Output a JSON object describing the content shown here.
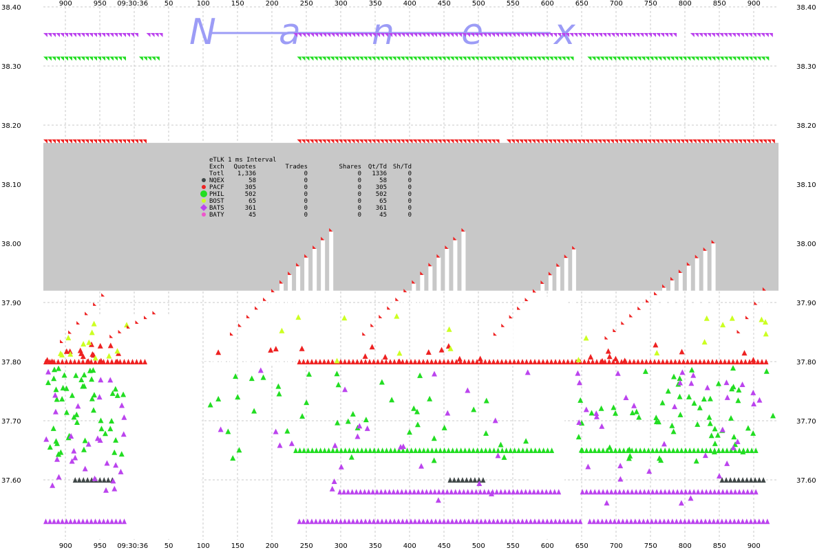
{
  "chart_data": {
    "type": "scatter",
    "y_range": [
      37.5,
      38.4
    ],
    "y_ticks": [
      "38.40",
      "38.30",
      "38.20",
      "38.10",
      "38.00",
      "37.90",
      "37.80",
      "37.70",
      "37.60"
    ],
    "x_tick_labels": [
      "900",
      "950",
      "09:30:36",
      "50",
      "100",
      "150",
      "200",
      "250",
      "300",
      "350",
      "400",
      "450",
      "500",
      "550",
      "600",
      "650",
      "700",
      "750",
      "800",
      "850",
      "900"
    ],
    "grid": true,
    "watermark": [
      "N",
      "a",
      "n",
      "e",
      "x"
    ],
    "legend_colors": {
      "NQEX": "#404848",
      "PACF": "#ee2222",
      "PHIL": "#22dd22",
      "BOST": "#ccff22",
      "BATS": "#bb44ee",
      "BATY": "#ee55cc"
    },
    "spread_fill_color": "#c8c8c8",
    "stats_table": {
      "title": "eTLK 1 ms Interval",
      "headers": [
        "Exch",
        "Quotes",
        "Trades",
        "Shares",
        "Qt/Td",
        "Sh/Td"
      ],
      "rows": [
        {
          "exch": "Totl",
          "marker": "",
          "quotes": "1,336",
          "trades": "0",
          "shares": "0",
          "qt_td": "1336",
          "sh_td": "0"
        },
        {
          "exch": "NQEX",
          "marker": "NQEX",
          "quotes": "58",
          "trades": "0",
          "shares": "0",
          "qt_td": "58",
          "sh_td": "0"
        },
        {
          "exch": "PACF",
          "marker": "PACF",
          "quotes": "305",
          "trades": "0",
          "shares": "0",
          "qt_td": "305",
          "sh_td": "0"
        },
        {
          "exch": "PHIL",
          "marker": "PHIL",
          "quotes": "502",
          "trades": "0",
          "shares": "0",
          "qt_td": "502",
          "sh_td": "0"
        },
        {
          "exch": "BOST",
          "marker": "BOST",
          "quotes": "65",
          "trades": "0",
          "shares": "0",
          "qt_td": "65",
          "sh_td": "0"
        },
        {
          "exch": "BATS",
          "marker": "BATS",
          "quotes": "361",
          "trades": "0",
          "shares": "0",
          "qt_td": "361",
          "sh_td": "0"
        },
        {
          "exch": "BATY",
          "marker": "BATY",
          "quotes": "45",
          "trades": "0",
          "shares": "0",
          "qt_td": "45",
          "sh_td": "0"
        }
      ]
    },
    "series": [
      {
        "exchange": "BATS",
        "side": "ask",
        "price": 38.35,
        "segments": [
          [
            0.0,
            0.125
          ],
          [
            0.14,
            0.16
          ],
          [
            0.34,
            0.53
          ],
          [
            0.53,
            0.86
          ],
          [
            0.88,
            0.99
          ]
        ]
      },
      {
        "exchange": "PHIL",
        "side": "ask",
        "price": 38.31,
        "segments": [
          [
            0.0,
            0.11
          ],
          [
            0.13,
            0.155
          ],
          [
            0.345,
            0.72
          ],
          [
            0.74,
            0.985
          ]
        ]
      },
      {
        "exchange": "PACF",
        "side": "ask",
        "price": 38.17,
        "segments": [
          [
            0.0,
            0.135
          ],
          [
            0.345,
            0.615
          ],
          [
            0.63,
            0.99
          ]
        ]
      },
      {
        "exchange": "PACF",
        "side": "bid",
        "price": 37.8,
        "segments": [
          [
            0.0,
            0.135
          ],
          [
            0.345,
            0.985
          ]
        ]
      },
      {
        "exchange": "PHIL",
        "side": "bid",
        "price": 37.65,
        "segments": [
          [
            0.34,
            0.69
          ],
          [
            0.73,
            0.97
          ]
        ]
      },
      {
        "exchange": "NQEX",
        "side": "bid",
        "price": 37.6,
        "segments": [
          [
            0.04,
            0.095
          ],
          [
            0.55,
            0.6
          ],
          [
            0.92,
            0.98
          ]
        ]
      },
      {
        "exchange": "BATS",
        "side": "bid",
        "price": 37.58,
        "segments": [
          [
            0.4,
            0.7
          ],
          [
            0.73,
            0.97
          ]
        ]
      },
      {
        "exchange": "BATS",
        "side": "bid",
        "price": 37.53,
        "segments": [
          [
            0.0,
            0.11
          ],
          [
            0.345,
            0.73
          ],
          [
            0.74,
            0.985
          ]
        ]
      }
    ]
  }
}
